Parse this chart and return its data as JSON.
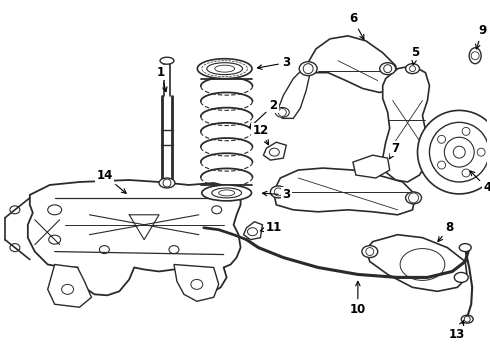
{
  "bg_color": "#ffffff",
  "line_color": "#2a2a2a",
  "fig_width": 4.9,
  "fig_height": 3.6,
  "dpi": 100,
  "xlim": [
    0,
    490
  ],
  "ylim": [
    0,
    360
  ]
}
